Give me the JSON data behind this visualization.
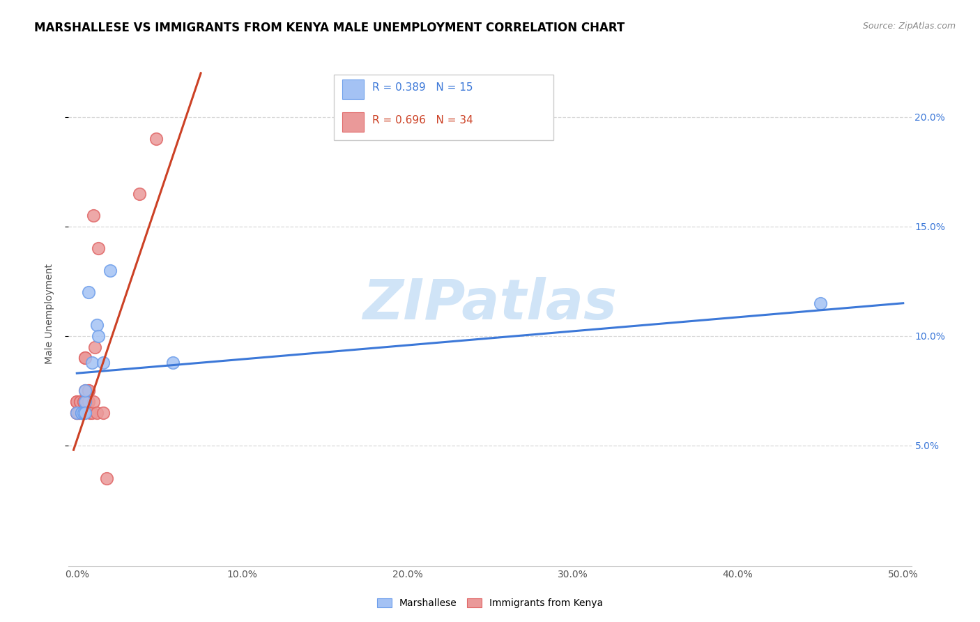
{
  "title": "MARSHALLESE VS IMMIGRANTS FROM KENYA MALE UNEMPLOYMENT CORRELATION CHART",
  "source": "Source: ZipAtlas.com",
  "ylabel": "Male Unemployment",
  "xlabel_ticks": [
    "0.0%",
    "10.0%",
    "20.0%",
    "30.0%",
    "40.0%",
    "50.0%"
  ],
  "ylabel_ticks": [
    "5.0%",
    "10.0%",
    "15.0%",
    "20.0%"
  ],
  "xlim": [
    -0.005,
    0.505
  ],
  "ylim": [
    -0.005,
    0.225
  ],
  "blue_R": "R = 0.389",
  "blue_N": "N = 15",
  "pink_R": "R = 0.696",
  "pink_N": "N = 34",
  "blue_color": "#a4c2f4",
  "pink_color": "#ea9999",
  "blue_line_color": "#3c78d8",
  "pink_line_color": "#cc4125",
  "blue_scatter_edge": "#6d9eeb",
  "pink_scatter_edge": "#e06666",
  "watermark_color": "#d0e4f7",
  "grid_color": "#d9d9d9",
  "watermark": "ZIPatlas",
  "blue_points_x": [
    0.0,
    0.003,
    0.003,
    0.004,
    0.005,
    0.005,
    0.005,
    0.007,
    0.009,
    0.012,
    0.013,
    0.016,
    0.02,
    0.058,
    0.45
  ],
  "blue_points_y": [
    0.065,
    0.065,
    0.065,
    0.065,
    0.07,
    0.065,
    0.075,
    0.12,
    0.088,
    0.105,
    0.1,
    0.088,
    0.13,
    0.088,
    0.115
  ],
  "pink_points_x": [
    0.0,
    0.0,
    0.0,
    0.0,
    0.0,
    0.001,
    0.001,
    0.002,
    0.002,
    0.003,
    0.003,
    0.003,
    0.004,
    0.004,
    0.004,
    0.005,
    0.005,
    0.005,
    0.006,
    0.006,
    0.007,
    0.007,
    0.007,
    0.008,
    0.009,
    0.01,
    0.01,
    0.011,
    0.012,
    0.013,
    0.016,
    0.018,
    0.038,
    0.048
  ],
  "pink_points_y": [
    0.065,
    0.065,
    0.065,
    0.07,
    0.07,
    0.065,
    0.065,
    0.07,
    0.07,
    0.065,
    0.065,
    0.065,
    0.065,
    0.07,
    0.07,
    0.075,
    0.09,
    0.09,
    0.07,
    0.07,
    0.07,
    0.075,
    0.075,
    0.065,
    0.065,
    0.07,
    0.155,
    0.095,
    0.065,
    0.14,
    0.065,
    0.035,
    0.165,
    0.19
  ],
  "blue_trend_x": [
    0.0,
    0.5
  ],
  "blue_trend_y": [
    0.083,
    0.115
  ],
  "pink_trend_x": [
    -0.002,
    0.075
  ],
  "pink_trend_y": [
    0.048,
    0.22
  ],
  "legend_labels": [
    "Marshallese",
    "Immigrants from Kenya"
  ],
  "title_fontsize": 12,
  "source_fontsize": 9,
  "label_fontsize": 10,
  "tick_fontsize": 10
}
